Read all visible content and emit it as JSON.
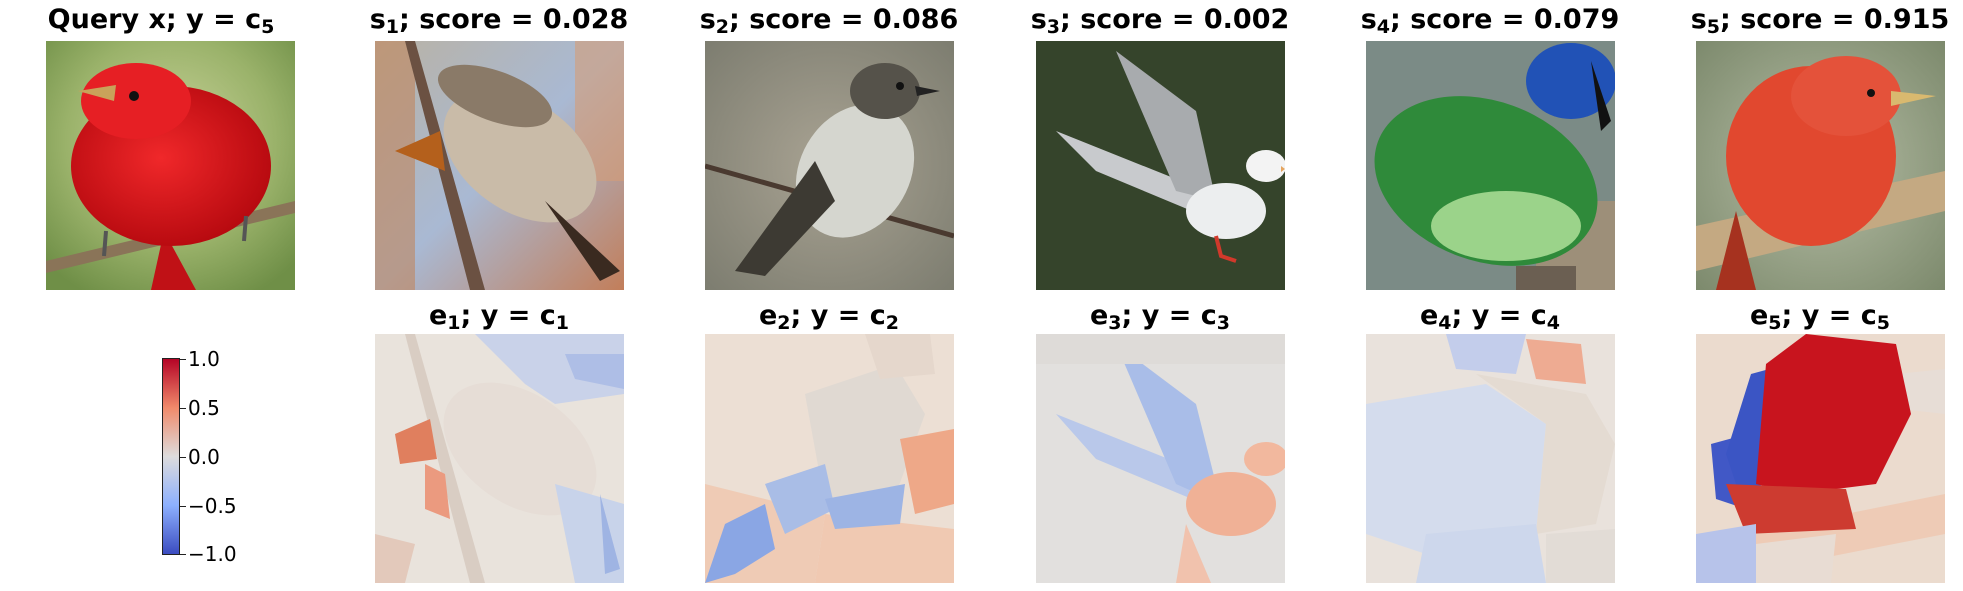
{
  "query": {
    "title": "Query x; y = c",
    "title_sub": "5",
    "image": "red-tanager-bird-on-branch"
  },
  "samples": [
    {
      "label": "s",
      "sub": "1",
      "score_text": "; score = 0.028",
      "score": 0.028,
      "image": "cedar-waxwing-bird-on-branch"
    },
    {
      "label": "s",
      "sub": "2",
      "score_text": "; score = 0.086",
      "score": 0.086,
      "image": "phoebe-flycatcher-on-twig"
    },
    {
      "label": "s",
      "sub": "3",
      "score_text": "; score = 0.002",
      "score": 0.002,
      "image": "white-gull-in-flight"
    },
    {
      "label": "s",
      "sub": "4",
      "score_text": "; score = 0.079",
      "score": 0.079,
      "image": "green-and-blue-bird"
    },
    {
      "label": "s",
      "sub": "5",
      "score_text": "; score = 0.915",
      "score": 0.915,
      "image": "red-tanager-bird-on-branch"
    }
  ],
  "explanations": [
    {
      "label": "e",
      "sub": "1",
      "class_text": "; y = c",
      "class_sub": "1",
      "image": "saliency-overlay-1"
    },
    {
      "label": "e",
      "sub": "2",
      "class_text": "; y = c",
      "class_sub": "2",
      "image": "saliency-overlay-2"
    },
    {
      "label": "e",
      "sub": "3",
      "class_text": "; y = c",
      "class_sub": "3",
      "image": "saliency-overlay-3"
    },
    {
      "label": "e",
      "sub": "4",
      "class_text": "; y = c",
      "class_sub": "4",
      "image": "saliency-overlay-4"
    },
    {
      "label": "e",
      "sub": "5",
      "class_text": "; y = c",
      "class_sub": "5",
      "image": "saliency-overlay-5"
    }
  ],
  "colorbar": {
    "colormap": "coolwarm",
    "ticks": [
      "1.0",
      "0.5",
      "0.0",
      "−0.5",
      "−1.0"
    ],
    "colors": {
      "high": "#b40426",
      "mid": "#dddcdc",
      "low": "#3b4cc0"
    }
  }
}
